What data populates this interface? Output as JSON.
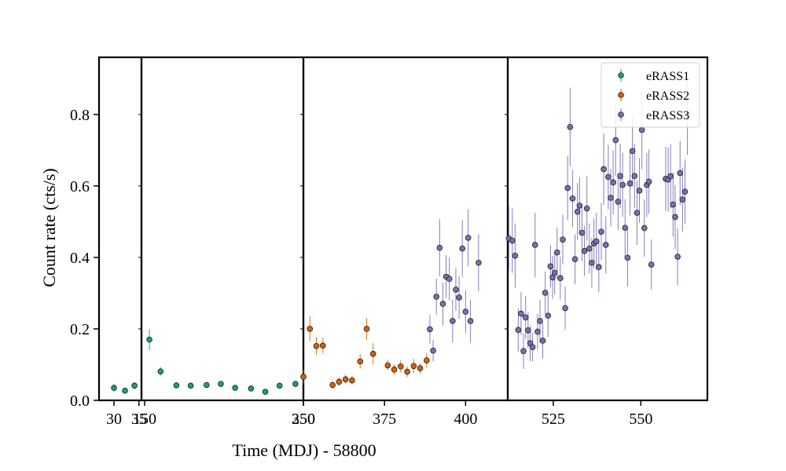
{
  "chart_data": {
    "type": "scatter",
    "xlabel": "Time (MDJ) - 58800",
    "ylabel": "Count rate (cts/s)",
    "ylim": [
      0,
      0.96
    ],
    "yticks": [
      0.0,
      0.2,
      0.4,
      0.6,
      0.8
    ],
    "ytick_labels": [
      "0.0",
      "0.2",
      "0.4",
      "0.6",
      "0.8"
    ],
    "grid": false,
    "legend_position": "top-right",
    "colors": {
      "eRASS1": "#1b9e77",
      "eRASS2": "#d95f02",
      "eRASS3": "#7570b3"
    },
    "panels": [
      {
        "xlim": [
          27,
          35.5
        ],
        "xticks": [
          30,
          35
        ],
        "xtick_labels": [
          "30",
          "35"
        ]
      },
      {
        "xlim": [
          148,
          250
        ],
        "xticks": [
          150,
          250
        ],
        "xtick_labels": [
          "150",
          "250"
        ]
      },
      {
        "xlim": [
          350,
          413
        ],
        "xticks": [
          350,
          375,
          400
        ],
        "xtick_labels": [
          "350",
          "375",
          "400"
        ]
      },
      {
        "xlim": [
          512,
          569
        ],
        "xticks": [
          525,
          550
        ],
        "xtick_labels": [
          "525",
          "550"
        ]
      }
    ],
    "series": [
      {
        "name": "eRASS1",
        "points": [
          [
            30,
            0.035,
            0.01
          ],
          [
            32.2,
            0.027,
            0.008
          ],
          [
            34.1,
            0.041,
            0.01
          ],
          [
            153,
            0.17,
            0.03
          ],
          [
            160,
            0.081,
            0.012
          ],
          [
            170,
            0.042,
            0.008
          ],
          [
            179,
            0.041,
            0.007
          ],
          [
            189,
            0.043,
            0.007
          ],
          [
            198,
            0.046,
            0.007
          ],
          [
            207,
            0.035,
            0.006
          ],
          [
            217,
            0.033,
            0.006
          ],
          [
            226,
            0.024,
            0.006
          ],
          [
            235,
            0.041,
            0.007
          ],
          [
            245,
            0.046,
            0.007
          ]
        ]
      },
      {
        "name": "eRASS2",
        "points": [
          [
            350,
            0.066,
            0.02
          ],
          [
            352,
            0.2,
            0.035
          ],
          [
            354,
            0.152,
            0.025
          ],
          [
            356,
            0.153,
            0.022
          ],
          [
            359,
            0.043,
            0.01
          ],
          [
            361,
            0.052,
            0.012
          ],
          [
            363,
            0.059,
            0.012
          ],
          [
            365,
            0.056,
            0.012
          ],
          [
            367.5,
            0.109,
            0.02
          ],
          [
            369.5,
            0.2,
            0.03
          ],
          [
            371.5,
            0.13,
            0.03
          ],
          [
            376,
            0.098,
            0.015
          ],
          [
            378,
            0.086,
            0.015
          ],
          [
            380,
            0.095,
            0.017
          ],
          [
            382,
            0.08,
            0.015
          ],
          [
            384,
            0.096,
            0.02
          ],
          [
            386,
            0.09,
            0.015
          ],
          [
            388,
            0.112,
            0.02
          ]
        ]
      },
      {
        "name": "eRASS3",
        "points": [
          [
            389,
            0.199,
            0.04
          ],
          [
            390,
            0.139,
            0.03
          ],
          [
            391,
            0.29,
            0.05
          ],
          [
            392,
            0.427,
            0.08
          ],
          [
            393,
            0.27,
            0.06
          ],
          [
            394,
            0.346,
            0.06
          ],
          [
            395,
            0.34,
            0.06
          ],
          [
            396,
            0.222,
            0.06
          ],
          [
            397,
            0.31,
            0.06
          ],
          [
            398,
            0.288,
            0.06
          ],
          [
            399,
            0.425,
            0.08
          ],
          [
            400,
            0.248,
            0.06
          ],
          [
            400.8,
            0.455,
            0.08
          ],
          [
            401.5,
            0.222,
            0.06
          ],
          [
            404,
            0.385,
            0.08
          ],
          [
            512.3,
            0.453,
            0.09
          ],
          [
            513.3,
            0.447,
            0.09
          ],
          [
            514.1,
            0.405,
            0.09
          ],
          [
            515,
            0.197,
            0.06
          ],
          [
            515.8,
            0.243,
            0.06
          ],
          [
            516.5,
            0.138,
            0.05
          ],
          [
            517.1,
            0.232,
            0.06
          ],
          [
            517.8,
            0.196,
            0.05
          ],
          [
            518.4,
            0.16,
            0.05
          ],
          [
            519.1,
            0.149,
            0.04
          ],
          [
            519.8,
            0.435,
            0.09
          ],
          [
            520.5,
            0.192,
            0.05
          ],
          [
            521.2,
            0.222,
            0.06
          ],
          [
            522,
            0.167,
            0.05
          ],
          [
            522.7,
            0.301,
            0.06
          ],
          [
            523.5,
            0.237,
            0.06
          ],
          [
            524.2,
            0.375,
            0.06
          ],
          [
            524.8,
            0.344,
            0.06
          ],
          [
            525.4,
            0.357,
            0.06
          ],
          [
            526.1,
            0.414,
            0.07
          ],
          [
            527,
            0.342,
            0.06
          ],
          [
            527.7,
            0.45,
            0.07
          ],
          [
            528.4,
            0.258,
            0.06
          ],
          [
            529.1,
            0.594,
            0.09
          ],
          [
            529.8,
            0.765,
            0.11
          ],
          [
            530.5,
            0.565,
            0.08
          ],
          [
            531.2,
            0.395,
            0.07
          ],
          [
            531.9,
            0.528,
            0.08
          ],
          [
            532.5,
            0.545,
            0.08
          ],
          [
            533.2,
            0.469,
            0.08
          ],
          [
            533.9,
            0.418,
            0.07
          ],
          [
            534.6,
            0.537,
            0.09
          ],
          [
            535.3,
            0.425,
            0.07
          ],
          [
            536,
            0.385,
            0.07
          ],
          [
            536.6,
            0.439,
            0.07
          ],
          [
            537.3,
            0.445,
            0.08
          ],
          [
            538,
            0.373,
            0.07
          ],
          [
            538.7,
            0.472,
            0.08
          ],
          [
            539.4,
            0.647,
            0.1
          ],
          [
            540,
            0.435,
            0.08
          ],
          [
            540.7,
            0.625,
            0.09
          ],
          [
            541.4,
            0.567,
            0.08
          ],
          [
            542.1,
            0.61,
            0.09
          ],
          [
            542.8,
            0.728,
            0.1
          ],
          [
            543.5,
            0.556,
            0.08
          ],
          [
            544.1,
            0.628,
            0.09
          ],
          [
            544.8,
            0.603,
            0.09
          ],
          [
            545.5,
            0.483,
            0.08
          ],
          [
            546.2,
            0.399,
            0.08
          ],
          [
            546.9,
            0.607,
            0.09
          ],
          [
            547.6,
            0.698,
            0.1
          ],
          [
            548.2,
            0.628,
            0.09
          ],
          [
            548.9,
            0.525,
            0.09
          ],
          [
            549.6,
            0.587,
            0.09
          ],
          [
            550.3,
            0.757,
            0.11
          ],
          [
            551,
            0.482,
            0.08
          ],
          [
            551.7,
            0.603,
            0.09
          ],
          [
            552.3,
            0.612,
            0.09
          ],
          [
            553,
            0.38,
            0.07
          ],
          [
            557.1,
            0.62,
            0.09
          ],
          [
            557.8,
            0.618,
            0.09
          ],
          [
            558.5,
            0.627,
            0.09
          ],
          [
            559.2,
            0.548,
            0.09
          ],
          [
            559.8,
            0.513,
            0.09
          ],
          [
            560.5,
            0.402,
            0.08
          ],
          [
            561.2,
            0.636,
            0.09
          ],
          [
            561.9,
            0.562,
            0.09
          ],
          [
            562.6,
            0.584,
            0.09
          ],
          [
            563.3,
            0.797,
            0.11
          ]
        ]
      }
    ]
  }
}
